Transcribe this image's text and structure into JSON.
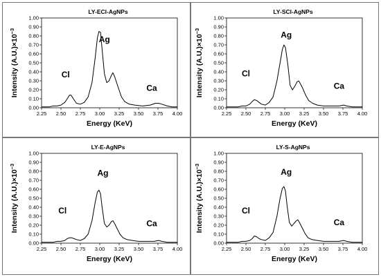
{
  "chart_data": [
    {
      "type": "line",
      "title": "LY-ECl-AgNPs",
      "xlabel": "Energy (KeV)",
      "ylabel": "Intensity (A.U.)×10",
      "ylabel_exp": "−3",
      "xlim": [
        2.25,
        4.0
      ],
      "ylim": [
        0,
        1.0
      ],
      "xticks": [
        "2.25",
        "2.50",
        "2.75",
        "3.00",
        "3.25",
        "3.50",
        "3.75",
        "4.00"
      ],
      "yticks": [
        "0.00",
        "0.10",
        "0.20",
        "0.30",
        "0.40",
        "0.50",
        "0.60",
        "0.70",
        "0.80",
        "0.90",
        "1.00"
      ],
      "annotations": [
        {
          "text": "Cl",
          "x": 2.56,
          "y": 0.34
        },
        {
          "text": "Ag",
          "x": 3.06,
          "y": 0.73
        },
        {
          "text": "Ca",
          "x": 3.67,
          "y": 0.19
        }
      ],
      "x": [
        2.25,
        2.3,
        2.35,
        2.4,
        2.45,
        2.5,
        2.55,
        2.58,
        2.61,
        2.63,
        2.66,
        2.7,
        2.75,
        2.8,
        2.85,
        2.9,
        2.94,
        2.97,
        2.99,
        3.01,
        3.03,
        3.06,
        3.09,
        3.12,
        3.15,
        3.17,
        3.19,
        3.21,
        3.24,
        3.28,
        3.32,
        3.38,
        3.45,
        3.55,
        3.65,
        3.72,
        3.76,
        3.8,
        3.87,
        3.93,
        4.0
      ],
      "y": [
        0.01,
        0.01,
        0.01,
        0.02,
        0.02,
        0.03,
        0.06,
        0.1,
        0.14,
        0.14,
        0.1,
        0.05,
        0.04,
        0.06,
        0.12,
        0.28,
        0.55,
        0.78,
        0.85,
        0.84,
        0.65,
        0.38,
        0.28,
        0.3,
        0.36,
        0.39,
        0.35,
        0.3,
        0.22,
        0.12,
        0.07,
        0.04,
        0.03,
        0.02,
        0.03,
        0.05,
        0.05,
        0.04,
        0.02,
        0.01,
        0.01
      ]
    },
    {
      "type": "line",
      "title": "LY-SCl-AgNPs",
      "xlabel": "Energy (KeV)",
      "ylabel": "Intensity (A.U.)×10",
      "ylabel_exp": "−3",
      "xlim": [
        2.25,
        4.0
      ],
      "ylim": [
        0,
        1.0
      ],
      "xticks": [
        "2.25",
        "2.50",
        "2.75",
        "3.00",
        "3.25",
        "3.50",
        "3.75",
        "4.00"
      ],
      "yticks": [
        "0.00",
        "0.10",
        "0.20",
        "0.30",
        "0.40",
        "0.50",
        "0.60",
        "0.70",
        "0.80",
        "0.90",
        "1.00"
      ],
      "annotations": [
        {
          "text": "Cl",
          "x": 2.5,
          "y": 0.35
        },
        {
          "text": "Ag",
          "x": 3.02,
          "y": 0.78
        },
        {
          "text": "Ca",
          "x": 3.7,
          "y": 0.21
        }
      ],
      "x": [
        2.25,
        2.3,
        2.35,
        2.4,
        2.45,
        2.5,
        2.55,
        2.58,
        2.61,
        2.64,
        2.67,
        2.7,
        2.75,
        2.8,
        2.85,
        2.9,
        2.94,
        2.97,
        2.99,
        3.01,
        3.04,
        3.07,
        3.1,
        3.13,
        3.16,
        3.18,
        3.2,
        3.23,
        3.27,
        3.31,
        3.36,
        3.42,
        3.5,
        3.6,
        3.7,
        3.76,
        3.8,
        3.87,
        3.94,
        4.0
      ],
      "y": [
        0.01,
        0.01,
        0.01,
        0.01,
        0.02,
        0.02,
        0.04,
        0.07,
        0.09,
        0.08,
        0.06,
        0.04,
        0.03,
        0.06,
        0.12,
        0.3,
        0.5,
        0.65,
        0.7,
        0.67,
        0.48,
        0.25,
        0.2,
        0.24,
        0.29,
        0.3,
        0.27,
        0.22,
        0.14,
        0.08,
        0.05,
        0.03,
        0.02,
        0.02,
        0.02,
        0.03,
        0.02,
        0.01,
        0.01,
        0.01
      ]
    },
    {
      "type": "line",
      "title": "LY-E-AgNPs",
      "xlabel": "Energy (KeV)",
      "ylabel": "Intensity (A.U.)×10",
      "ylabel_exp": "−3",
      "xlim": [
        2.25,
        4.0
      ],
      "ylim": [
        0,
        1.0
      ],
      "xticks": [
        "2.25",
        "2.50",
        "2.75",
        "3.00",
        "3.25",
        "3.50",
        "3.75",
        "4.00"
      ],
      "yticks": [
        "0.00",
        "0.10",
        "0.20",
        "0.30",
        "0.40",
        "0.50",
        "0.60",
        "0.70",
        "0.80",
        "0.90",
        "1.00"
      ],
      "annotations": [
        {
          "text": "Cl",
          "x": 2.52,
          "y": 0.33
        },
        {
          "text": "Ag",
          "x": 3.04,
          "y": 0.75
        },
        {
          "text": "Ca",
          "x": 3.67,
          "y": 0.19
        }
      ],
      "x": [
        2.25,
        2.3,
        2.35,
        2.4,
        2.45,
        2.5,
        2.55,
        2.58,
        2.61,
        2.64,
        2.67,
        2.7,
        2.75,
        2.8,
        2.85,
        2.9,
        2.94,
        2.97,
        2.99,
        3.01,
        3.03,
        3.06,
        3.09,
        3.12,
        3.15,
        3.17,
        3.19,
        3.22,
        3.26,
        3.3,
        3.35,
        3.42,
        3.5,
        3.6,
        3.7,
        3.76,
        3.8,
        3.87,
        3.94,
        4.0
      ],
      "y": [
        0.01,
        0.01,
        0.01,
        0.01,
        0.02,
        0.02,
        0.03,
        0.05,
        0.06,
        0.06,
        0.05,
        0.04,
        0.03,
        0.05,
        0.1,
        0.25,
        0.45,
        0.57,
        0.59,
        0.55,
        0.4,
        0.22,
        0.18,
        0.2,
        0.24,
        0.25,
        0.22,
        0.17,
        0.1,
        0.06,
        0.04,
        0.03,
        0.02,
        0.02,
        0.02,
        0.03,
        0.02,
        0.01,
        0.01,
        0.01
      ]
    },
    {
      "type": "line",
      "title": "LY-S-AgNPs",
      "xlabel": "Energy (KeV)",
      "ylabel": "Intensity (A.U.)×10",
      "ylabel_exp": "−3",
      "xlim": [
        2.25,
        4.0
      ],
      "ylim": [
        0,
        1.0
      ],
      "xticks": [
        "2.25",
        "2.50",
        "2.75",
        "3.00",
        "3.25",
        "3.50",
        "3.75",
        "4.00"
      ],
      "yticks": [
        "0.00",
        "0.10",
        "0.20",
        "0.30",
        "0.40",
        "0.50",
        "0.60",
        "0.70",
        "0.80",
        "0.90",
        "1.00"
      ],
      "annotations": [
        {
          "text": "Cl",
          "x": 2.5,
          "y": 0.33
        },
        {
          "text": "Ag",
          "x": 3.02,
          "y": 0.76
        },
        {
          "text": "Ca",
          "x": 3.7,
          "y": 0.2
        }
      ],
      "x": [
        2.25,
        2.3,
        2.35,
        2.4,
        2.45,
        2.5,
        2.55,
        2.58,
        2.61,
        2.64,
        2.67,
        2.7,
        2.75,
        2.8,
        2.85,
        2.9,
        2.94,
        2.97,
        2.99,
        3.01,
        3.03,
        3.06,
        3.09,
        3.12,
        3.15,
        3.17,
        3.19,
        3.22,
        3.26,
        3.3,
        3.35,
        3.42,
        3.5,
        3.6,
        3.7,
        3.76,
        3.8,
        3.87,
        3.94,
        4.0
      ],
      "y": [
        0.01,
        0.01,
        0.01,
        0.01,
        0.02,
        0.02,
        0.03,
        0.05,
        0.08,
        0.07,
        0.05,
        0.04,
        0.03,
        0.06,
        0.12,
        0.3,
        0.5,
        0.61,
        0.63,
        0.58,
        0.42,
        0.23,
        0.19,
        0.22,
        0.25,
        0.26,
        0.23,
        0.18,
        0.11,
        0.06,
        0.04,
        0.03,
        0.02,
        0.02,
        0.02,
        0.03,
        0.02,
        0.01,
        0.01,
        0.01
      ]
    }
  ]
}
